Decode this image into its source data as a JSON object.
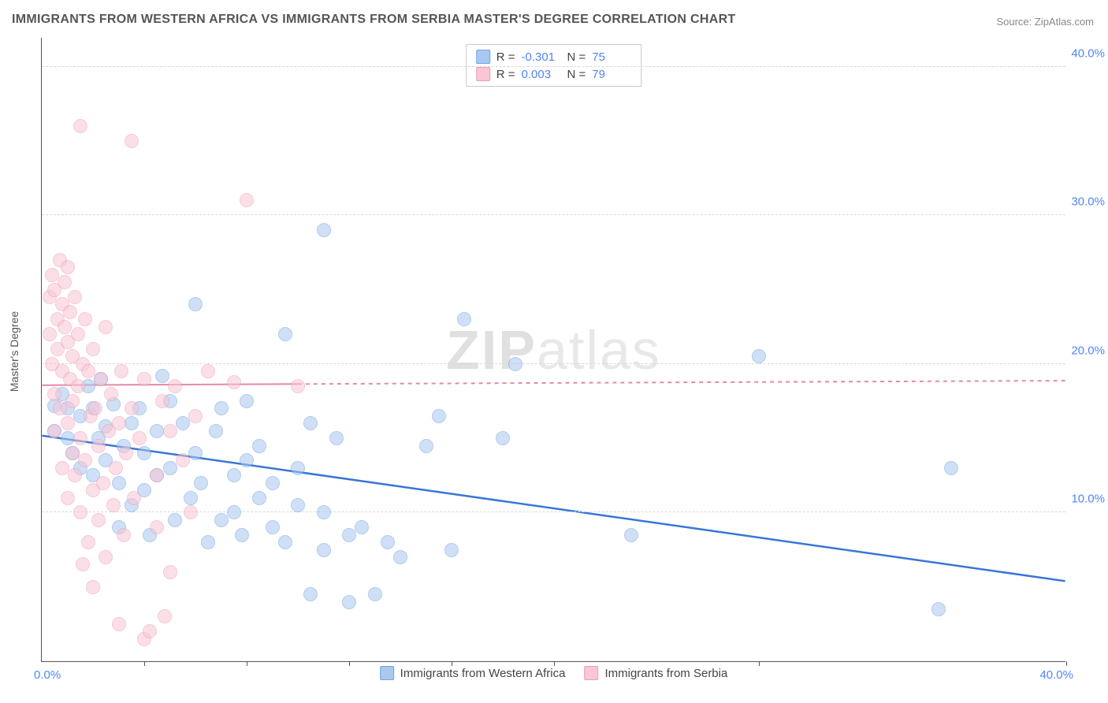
{
  "title": "IMMIGRANTS FROM WESTERN AFRICA VS IMMIGRANTS FROM SERBIA MASTER'S DEGREE CORRELATION CHART",
  "source_label": "Source: ZipAtlas.com",
  "watermark_bold": "ZIP",
  "watermark_rest": "atlas",
  "yaxis_label": "Master's Degree",
  "chart": {
    "type": "scatter",
    "xlim": [
      0,
      40
    ],
    "ylim": [
      0,
      42
    ],
    "yticks": [
      10,
      20,
      30,
      40
    ],
    "ytick_labels": [
      "10.0%",
      "20.0%",
      "30.0%",
      "40.0%"
    ],
    "xtick_positions": [
      4,
      8,
      12,
      16,
      20,
      28,
      40
    ],
    "xlabel_start": "0.0%",
    "xlabel_end": "40.0%",
    "background_color": "#ffffff",
    "grid_color": "#d8d8d8",
    "marker_radius": 9,
    "marker_opacity": 0.55
  },
  "series": [
    {
      "id": "wa",
      "label": "Immigrants from Western Africa",
      "color": "#a8c8f0",
      "stroke": "#6fa3e3",
      "R": "-0.301",
      "N": "75",
      "trend": {
        "color": "#3876d6",
        "width": 2.5,
        "x1": 0,
        "y1": 15.2,
        "x2": 40,
        "y2": 5.4,
        "dash": "none"
      },
      "points": [
        [
          0.5,
          17.2
        ],
        [
          0.5,
          15.5
        ],
        [
          0.8,
          18.0
        ],
        [
          1.0,
          17.0
        ],
        [
          1.0,
          15.0
        ],
        [
          1.2,
          14.0
        ],
        [
          1.5,
          13.0
        ],
        [
          1.5,
          16.5
        ],
        [
          1.8,
          18.5
        ],
        [
          2.0,
          17.0
        ],
        [
          2.0,
          12.5
        ],
        [
          2.2,
          15.0
        ],
        [
          2.5,
          15.8
        ],
        [
          2.5,
          13.5
        ],
        [
          2.8,
          17.3
        ],
        [
          3.0,
          12.0
        ],
        [
          3.0,
          9.0
        ],
        [
          3.2,
          14.5
        ],
        [
          3.5,
          16.0
        ],
        [
          3.5,
          10.5
        ],
        [
          3.8,
          17.0
        ],
        [
          4.0,
          11.5
        ],
        [
          4.0,
          14.0
        ],
        [
          4.2,
          8.5
        ],
        [
          4.5,
          15.5
        ],
        [
          4.5,
          12.5
        ],
        [
          5.0,
          17.5
        ],
        [
          5.0,
          13.0
        ],
        [
          5.2,
          9.5
        ],
        [
          5.5,
          16.0
        ],
        [
          5.8,
          11.0
        ],
        [
          6.0,
          24.0
        ],
        [
          6.0,
          14.0
        ],
        [
          6.2,
          12.0
        ],
        [
          6.5,
          8.0
        ],
        [
          6.8,
          15.5
        ],
        [
          7.0,
          9.5
        ],
        [
          7.0,
          17.0
        ],
        [
          7.5,
          12.5
        ],
        [
          7.5,
          10.0
        ],
        [
          7.8,
          8.5
        ],
        [
          8.0,
          13.5
        ],
        [
          8.0,
          17.5
        ],
        [
          8.5,
          11.0
        ],
        [
          8.5,
          14.5
        ],
        [
          9.0,
          9.0
        ],
        [
          9.0,
          12.0
        ],
        [
          9.5,
          22.0
        ],
        [
          9.5,
          8.0
        ],
        [
          10.0,
          10.5
        ],
        [
          10.0,
          13.0
        ],
        [
          10.5,
          4.5
        ],
        [
          10.5,
          16.0
        ],
        [
          11.0,
          29.0
        ],
        [
          11.0,
          7.5
        ],
        [
          11.0,
          10.0
        ],
        [
          11.5,
          15.0
        ],
        [
          12.0,
          8.5
        ],
        [
          12.0,
          4.0
        ],
        [
          12.5,
          9.0
        ],
        [
          13.0,
          4.5
        ],
        [
          13.5,
          8.0
        ],
        [
          14.0,
          7.0
        ],
        [
          15.0,
          14.5
        ],
        [
          15.5,
          16.5
        ],
        [
          16.0,
          7.5
        ],
        [
          16.5,
          23.0
        ],
        [
          18.0,
          15.0
        ],
        [
          18.5,
          20.0
        ],
        [
          23.0,
          8.5
        ],
        [
          28.0,
          20.5
        ],
        [
          35.5,
          13.0
        ],
        [
          35.0,
          3.5
        ],
        [
          2.3,
          19.0
        ],
        [
          4.7,
          19.2
        ]
      ]
    },
    {
      "id": "sr",
      "label": "Immigrants from Serbia",
      "color": "#f8c6d4",
      "stroke": "#f09db5",
      "R": "0.003",
      "N": "79",
      "trend": {
        "color": "#e38aa6",
        "width": 2,
        "x1": 0,
        "y1": 18.6,
        "x2": 40,
        "y2": 18.9,
        "solid_until": 10
      },
      "points": [
        [
          0.3,
          24.5
        ],
        [
          0.3,
          22.0
        ],
        [
          0.4,
          26.0
        ],
        [
          0.4,
          20.0
        ],
        [
          0.5,
          25.0
        ],
        [
          0.5,
          18.0
        ],
        [
          0.5,
          15.5
        ],
        [
          0.6,
          23.0
        ],
        [
          0.6,
          21.0
        ],
        [
          0.7,
          27.0
        ],
        [
          0.7,
          17.0
        ],
        [
          0.8,
          24.0
        ],
        [
          0.8,
          13.0
        ],
        [
          0.8,
          19.5
        ],
        [
          0.9,
          25.5
        ],
        [
          0.9,
          22.5
        ],
        [
          1.0,
          21.5
        ],
        [
          1.0,
          26.5
        ],
        [
          1.0,
          16.0
        ],
        [
          1.0,
          11.0
        ],
        [
          1.1,
          23.5
        ],
        [
          1.1,
          19.0
        ],
        [
          1.2,
          20.5
        ],
        [
          1.2,
          17.5
        ],
        [
          1.2,
          14.0
        ],
        [
          1.3,
          24.5
        ],
        [
          1.3,
          12.5
        ],
        [
          1.4,
          18.5
        ],
        [
          1.4,
          22.0
        ],
        [
          1.5,
          36.0
        ],
        [
          1.5,
          15.0
        ],
        [
          1.5,
          10.0
        ],
        [
          1.6,
          20.0
        ],
        [
          1.6,
          6.5
        ],
        [
          1.7,
          23.0
        ],
        [
          1.7,
          13.5
        ],
        [
          1.8,
          19.5
        ],
        [
          1.8,
          8.0
        ],
        [
          1.9,
          16.5
        ],
        [
          2.0,
          21.0
        ],
        [
          2.0,
          11.5
        ],
        [
          2.0,
          5.0
        ],
        [
          2.1,
          17.0
        ],
        [
          2.2,
          14.5
        ],
        [
          2.2,
          9.5
        ],
        [
          2.3,
          19.0
        ],
        [
          2.4,
          12.0
        ],
        [
          2.5,
          22.5
        ],
        [
          2.5,
          7.0
        ],
        [
          2.6,
          15.5
        ],
        [
          2.7,
          18.0
        ],
        [
          2.8,
          10.5
        ],
        [
          2.9,
          13.0
        ],
        [
          3.0,
          16.0
        ],
        [
          3.0,
          2.5
        ],
        [
          3.1,
          19.5
        ],
        [
          3.2,
          8.5
        ],
        [
          3.3,
          14.0
        ],
        [
          3.5,
          35.0
        ],
        [
          3.5,
          17.0
        ],
        [
          3.6,
          11.0
        ],
        [
          3.8,
          15.0
        ],
        [
          4.0,
          1.5
        ],
        [
          4.0,
          19.0
        ],
        [
          4.2,
          2.0
        ],
        [
          4.5,
          12.5
        ],
        [
          4.5,
          9.0
        ],
        [
          4.7,
          17.5
        ],
        [
          4.8,
          3.0
        ],
        [
          5.0,
          15.5
        ],
        [
          5.0,
          6.0
        ],
        [
          5.2,
          18.5
        ],
        [
          5.5,
          13.5
        ],
        [
          5.8,
          10.0
        ],
        [
          6.0,
          16.5
        ],
        [
          6.5,
          19.5
        ],
        [
          7.5,
          18.8
        ],
        [
          8.0,
          31.0
        ],
        [
          10.0,
          18.5
        ]
      ]
    }
  ],
  "stats_labels": {
    "R": "R =",
    "N": "N ="
  }
}
